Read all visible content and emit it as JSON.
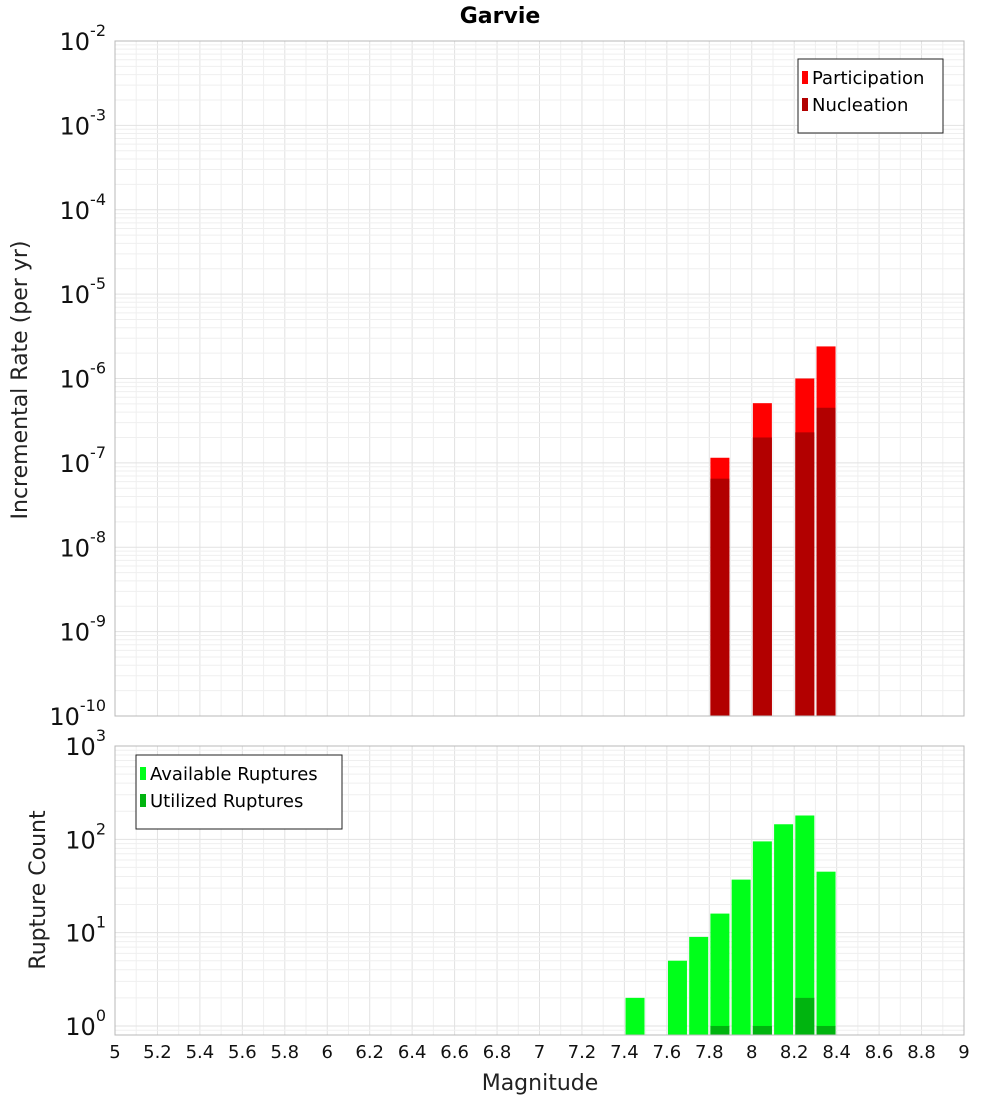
{
  "chart_data": [
    {
      "type": "bar",
      "title": "Garvie",
      "ylabel": "Incremental Rate (per yr)",
      "yscale": "log",
      "ylim": [
        1e-10,
        0.01
      ],
      "xlim": [
        5,
        9
      ],
      "grid": true,
      "legend_position": "top-right",
      "y_ticks": [
        {
          "base": "10",
          "exp": "-2",
          "value": 0.01
        },
        {
          "base": "10",
          "exp": "-3",
          "value": 0.001
        },
        {
          "base": "10",
          "exp": "-4",
          "value": 0.0001
        },
        {
          "base": "10",
          "exp": "-5",
          "value": 1e-05
        },
        {
          "base": "10",
          "exp": "-6",
          "value": 1e-06
        },
        {
          "base": "10",
          "exp": "-7",
          "value": 1e-07
        },
        {
          "base": "10",
          "exp": "-8",
          "value": 1e-08
        },
        {
          "base": "10",
          "exp": "-9",
          "value": 1e-09
        },
        {
          "base": "10",
          "exp": "-10",
          "value": 1e-10
        }
      ],
      "series": [
        {
          "name": "Participation",
          "color": "#ff0000",
          "x": [
            7.85,
            8.05,
            8.25,
            8.35
          ],
          "values": [
            1.15e-07,
            5.1e-07,
            1e-06,
            2.4e-06
          ]
        },
        {
          "name": "Nucleation",
          "color": "#b20000",
          "x": [
            7.85,
            8.05,
            8.25,
            8.35
          ],
          "values": [
            6.5e-08,
            2e-07,
            2.3e-07,
            4.5e-07
          ]
        }
      ]
    },
    {
      "type": "bar",
      "ylabel": "Rupture Count",
      "xlabel": "Magnitude",
      "yscale": "log",
      "ylim": [
        0.8,
        1000
      ],
      "xlim": [
        5,
        9
      ],
      "grid": true,
      "legend_position": "top-left",
      "x_tick_labels": [
        "5",
        "5.2",
        "5.4",
        "5.6",
        "5.8",
        "6",
        "6.2",
        "6.4",
        "6.6",
        "6.8",
        "7",
        "7.2",
        "7.4",
        "7.6",
        "7.8",
        "8",
        "8.2",
        "8.4",
        "8.6",
        "8.8",
        "9"
      ],
      "y_ticks": [
        {
          "base": "10",
          "exp": "3",
          "value": 1000
        },
        {
          "base": "10",
          "exp": "2",
          "value": 100
        },
        {
          "base": "10",
          "exp": "1",
          "value": 10
        },
        {
          "base": "10",
          "exp": "0",
          "value": 1
        }
      ],
      "series": [
        {
          "name": "Available Ruptures",
          "color": "#00ff1a",
          "x": [
            7.45,
            7.65,
            7.75,
            7.85,
            7.95,
            8.05,
            8.15,
            8.25,
            8.35
          ],
          "values": [
            2,
            5,
            9,
            16,
            37,
            95,
            145,
            180,
            45
          ]
        },
        {
          "name": "Utilized Ruptures",
          "color": "#00b40f",
          "x": [
            7.85,
            8.05,
            8.25,
            8.35
          ],
          "values": [
            1,
            1,
            2,
            1
          ]
        }
      ]
    }
  ]
}
